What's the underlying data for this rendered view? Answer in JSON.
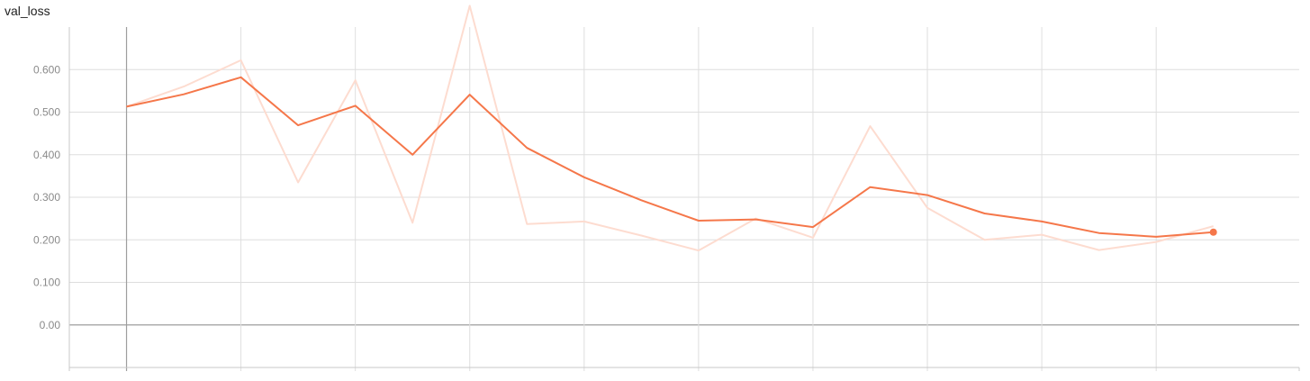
{
  "chart_data": {
    "type": "line",
    "title": "val_loss",
    "xlabel": "",
    "ylabel": "",
    "xlim": [
      -1,
      20.5
    ],
    "ylim": [
      -0.1,
      0.7
    ],
    "grid": true,
    "y_ticks": [
      {
        "value": 0.6,
        "label": "0.600"
      },
      {
        "value": 0.5,
        "label": "0.500"
      },
      {
        "value": 0.4,
        "label": "0.400"
      },
      {
        "value": 0.3,
        "label": "0.300"
      },
      {
        "value": 0.2,
        "label": "0.200"
      },
      {
        "value": 0.1,
        "label": "0.100"
      },
      {
        "value": 0.0,
        "label": "0.00"
      }
    ],
    "x_gridlines": [
      0,
      2,
      4,
      6,
      8,
      10,
      12,
      14,
      16,
      18
    ],
    "colors": {
      "smoothed": "#f5774a",
      "raw": "#fddcd0"
    },
    "series": [
      {
        "name": "",
        "kind": "raw",
        "x": [
          0,
          1,
          2,
          3,
          4,
          5,
          6,
          7,
          8,
          9,
          10,
          11,
          12,
          13,
          14,
          15,
          16,
          17,
          18,
          19
        ],
        "y": [
          0.513,
          0.56,
          0.622,
          0.335,
          0.575,
          0.24,
          0.75,
          0.237,
          0.243,
          0.21,
          0.175,
          0.25,
          0.205,
          0.467,
          0.275,
          0.2,
          0.212,
          0.176,
          0.195,
          0.232
        ]
      },
      {
        "name": "",
        "kind": "smoothed",
        "x": [
          0,
          1,
          2,
          3,
          4,
          5,
          6,
          7,
          8,
          9,
          10,
          11,
          12,
          13,
          14,
          15,
          16,
          17,
          18,
          19
        ],
        "y": [
          0.513,
          0.542,
          0.582,
          0.469,
          0.515,
          0.4,
          0.541,
          0.416,
          0.347,
          0.293,
          0.245,
          0.248,
          0.23,
          0.324,
          0.305,
          0.262,
          0.243,
          0.216,
          0.207,
          0.218
        ]
      }
    ]
  }
}
